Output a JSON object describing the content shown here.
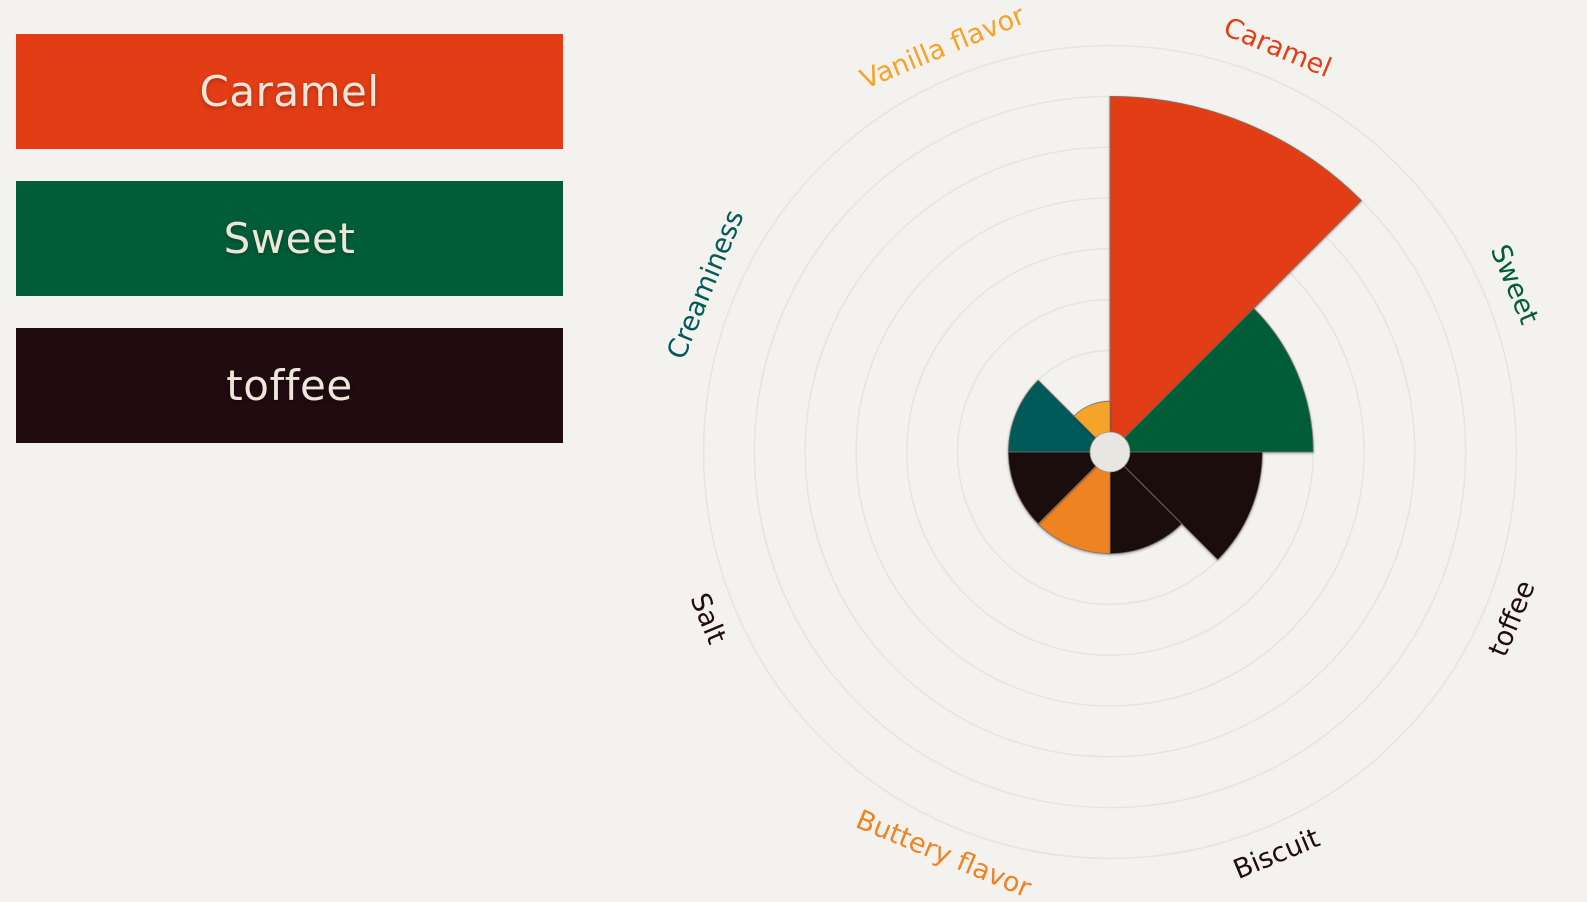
{
  "legend": [
    {
      "label": "Caramel",
      "color": "#e33d15"
    },
    {
      "label": "Sweet",
      "color": "#015d38"
    },
    {
      "label": "toffee",
      "color": "#1f0b10"
    }
  ],
  "chart_data": {
    "type": "polar-area",
    "title": "",
    "rings": 8,
    "max": 8,
    "grid": true,
    "categories": [
      "Caramel",
      "Sweet",
      "toffee",
      "Biscuit",
      "Buttery flavor",
      "Salt",
      "Creaminess",
      "Vanilla flavor"
    ],
    "values": [
      7,
      4,
      3,
      2,
      2,
      2,
      2,
      1
    ],
    "colors": [
      "#e33d15",
      "#015d38",
      "#1f0b10",
      "#1f0b10",
      "#ef8323",
      "#1f0b10",
      "#005a5a",
      "#f6a32a"
    ],
    "label_colors": [
      "#e33d15",
      "#015d38",
      "#1f0b10",
      "#1f0b10",
      "#ef8323",
      "#1f0b10",
      "#005a5a",
      "#f6a32a"
    ]
  }
}
